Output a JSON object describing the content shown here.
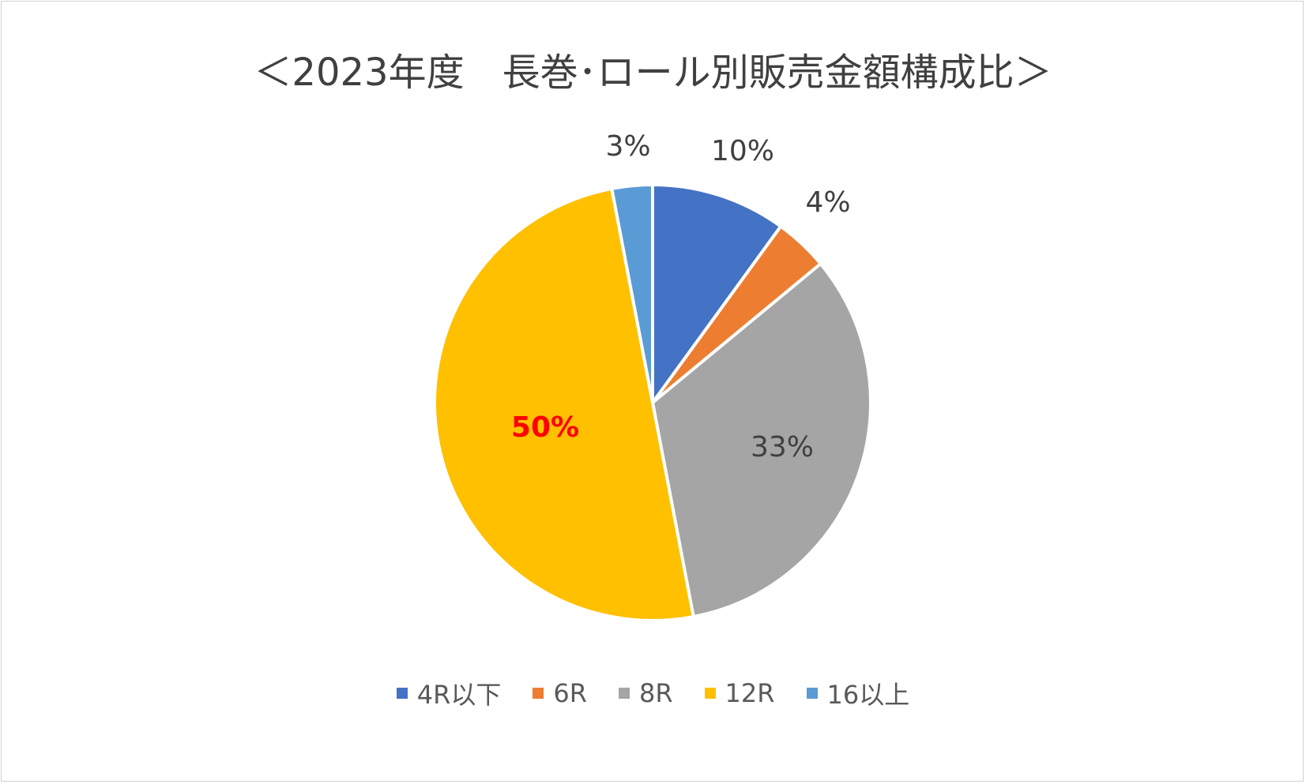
{
  "chart_data": {
    "type": "pie",
    "title": "＜2023年度　長巻･ロール別販売金額構成比＞",
    "categories": [
      "4R以下",
      "6R",
      "8R",
      "12R",
      "16以上"
    ],
    "values": [
      10,
      4,
      33,
      50,
      3
    ],
    "data_labels": [
      "10%",
      "4%",
      "33%",
      "50%",
      "3%"
    ],
    "colors": [
      "#4472C4",
      "#ED7D31",
      "#A5A5A5",
      "#FFC000",
      "#5B9BD5"
    ],
    "highlight_label": "50%",
    "highlight_color": "#FF0000",
    "legend_position": "bottom"
  }
}
